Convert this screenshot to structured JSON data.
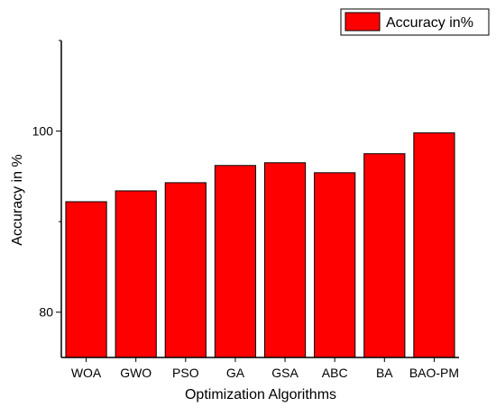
{
  "chart_data": {
    "type": "bar",
    "title": "",
    "xlabel": "Optimization Algorithms",
    "ylabel": "Accuracy in %",
    "categories": [
      "WOA",
      "GWO",
      "PSO",
      "GA",
      "GSA",
      "ABC",
      "BA",
      "BAO-PM"
    ],
    "series": [
      {
        "name": "Accuracy in%",
        "values": [
          92.2,
          93.4,
          94.3,
          96.2,
          96.5,
          95.4,
          97.5,
          99.8
        ],
        "color": "#ff0000"
      }
    ],
    "ylim": [
      75,
      110
    ],
    "yticks": [
      80,
      100
    ],
    "grid": false,
    "legend_position": "top-right"
  }
}
